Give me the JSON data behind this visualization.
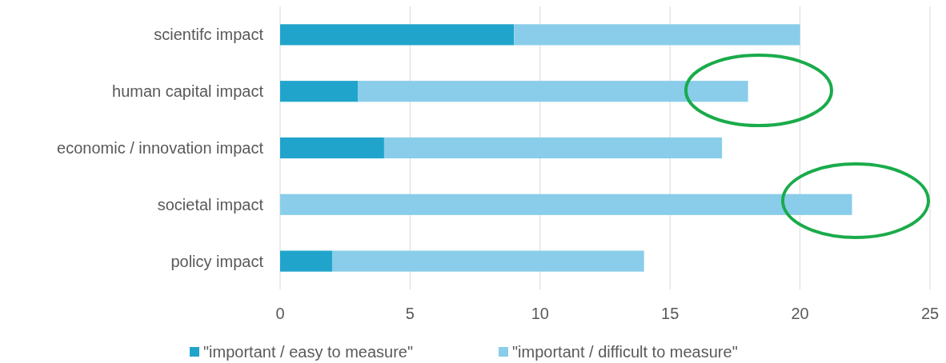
{
  "chart_data": {
    "type": "bar",
    "orientation": "horizontal",
    "stacked": true,
    "categories": [
      "scientifc impact",
      "human capital impact",
      "economic / innovation impact",
      "societal impact",
      "policy impact"
    ],
    "series": [
      {
        "name": "\"important / easy to measure\"",
        "color": "#21a4cb",
        "values": [
          9,
          3,
          4,
          0,
          2
        ]
      },
      {
        "name": "\"important / difficult to measure\"",
        "color": "#89cdea",
        "values": [
          11,
          15,
          13,
          22,
          12
        ]
      }
    ],
    "xlim": [
      0,
      25
    ],
    "xticks": [
      0,
      5,
      10,
      15,
      20,
      25
    ],
    "grid": "x",
    "legend": "bottom"
  }
}
